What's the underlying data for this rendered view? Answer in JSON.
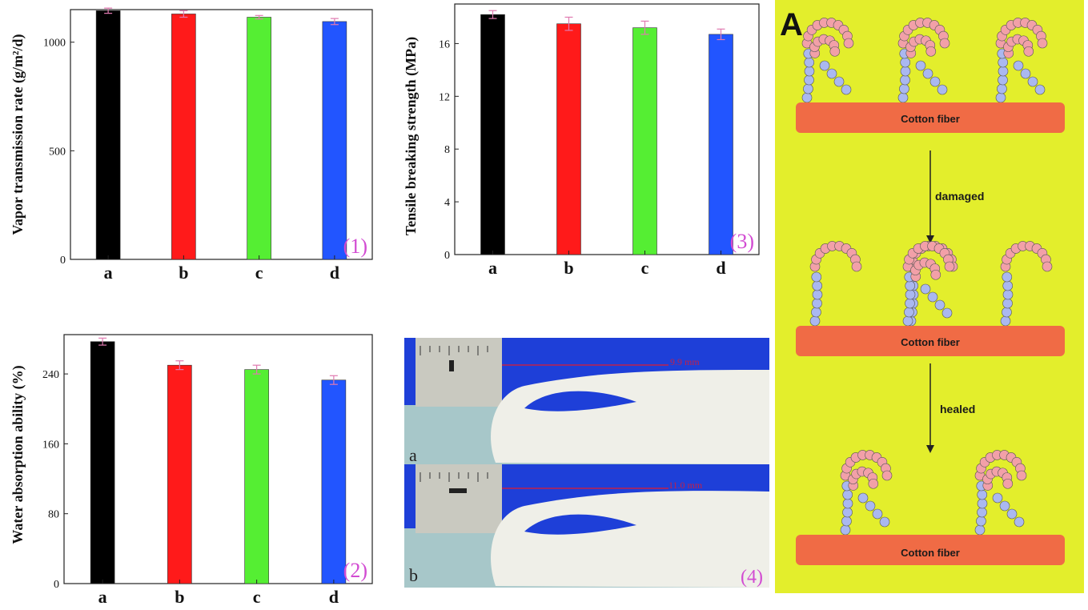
{
  "chart_data": [
    {
      "id": "vapor",
      "type": "bar",
      "categories": [
        "a",
        "b",
        "c",
        "d"
      ],
      "values": [
        1145,
        1130,
        1115,
        1095
      ],
      "errors": [
        12,
        15,
        8,
        14
      ],
      "colors": [
        "#000000",
        "#ff1a1a",
        "#55ee33",
        "#2255ff"
      ],
      "ylabel": "Vapor transmission rate (g/m²/d)",
      "ylim": [
        0,
        1150
      ],
      "yticks": [
        0,
        500,
        1000
      ],
      "panel_label": "(1)"
    },
    {
      "id": "water",
      "type": "bar",
      "categories": [
        "a",
        "b",
        "c",
        "d"
      ],
      "values": [
        277,
        250,
        245,
        233
      ],
      "errors": [
        4,
        5,
        5,
        5
      ],
      "colors": [
        "#000000",
        "#ff1a1a",
        "#55ee33",
        "#2255ff"
      ],
      "ylabel": "Water absorption ability (%)",
      "ylim": [
        0,
        285
      ],
      "yticks": [
        0,
        80,
        160,
        240
      ],
      "panel_label": "(2)"
    },
    {
      "id": "tensile",
      "type": "bar",
      "categories": [
        "a",
        "b",
        "c",
        "d"
      ],
      "values": [
        18.2,
        17.5,
        17.2,
        16.7
      ],
      "errors": [
        0.3,
        0.5,
        0.5,
        0.4
      ],
      "colors": [
        "#000000",
        "#ff1a1a",
        "#55ee33",
        "#2255ff"
      ],
      "ylabel": "Tensile breaking strength (MPa)",
      "ylim": [
        0,
        19
      ],
      "yticks": [
        0,
        4,
        8,
        12,
        16
      ],
      "panel_label": "(3)"
    }
  ],
  "photo": {
    "panel_label": "(4)",
    "top_label": "a",
    "bottom_label": "b",
    "top_measure": "9.9 mm",
    "bottom_measure": "11.0 mm"
  },
  "schematic": {
    "letter": "A",
    "fiber_label": "Cotton fiber",
    "arrow1_label": "damaged",
    "arrow2_label": "healed"
  }
}
